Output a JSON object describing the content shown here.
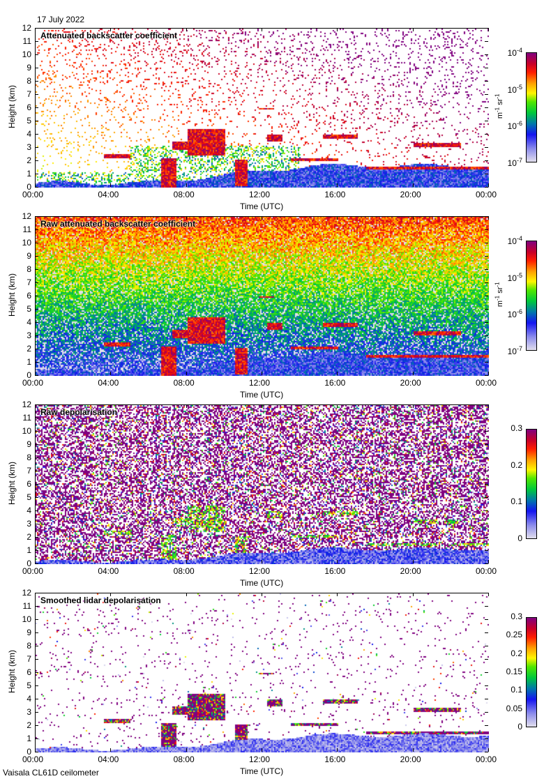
{
  "header": {
    "date": "17 July 2022"
  },
  "footer": {
    "instrument": "Vaisala CL61D ceilometer"
  },
  "chart_data": [
    {
      "type": "heatmap",
      "title": "Attenuated backscatter coefficient",
      "xlabel": "Time (UTC)",
      "ylabel": "Height (km)",
      "xticks": [
        "00:00",
        "04:00",
        "08:00",
        "12:00",
        "16:00",
        "20:00",
        "00:00"
      ],
      "yticks": [
        "0",
        "1",
        "2",
        "3",
        "4",
        "5",
        "6",
        "7",
        "8",
        "9",
        "10",
        "11",
        "12"
      ],
      "ylim": [
        0,
        12
      ],
      "colorbar": {
        "scale": "log",
        "range": [
          1e-07,
          0.0001
        ],
        "unit_base": "m",
        "unit_exp1": "-1",
        "unit_mid": " sr",
        "unit_exp2": "-1",
        "ticks": [
          {
            "base": "10",
            "exp": "-4"
          },
          {
            "base": "10",
            "exp": "-5"
          },
          {
            "base": "10",
            "exp": "-6"
          },
          {
            "base": "10",
            "exp": "-7"
          }
        ]
      }
    },
    {
      "type": "heatmap",
      "title": "Raw attenuated backscatter coefficient",
      "xlabel": "Time (UTC)",
      "ylabel": "Height (km)",
      "xticks": [
        "00:00",
        "04:00",
        "08:00",
        "12:00",
        "16:00",
        "20:00",
        "00:00"
      ],
      "yticks": [
        "0",
        "1",
        "2",
        "3",
        "4",
        "5",
        "6",
        "7",
        "8",
        "9",
        "10",
        "11",
        "12"
      ],
      "ylim": [
        0,
        12
      ],
      "colorbar": {
        "scale": "log",
        "range": [
          1e-07,
          0.0001
        ],
        "unit_base": "m",
        "unit_exp1": "-1",
        "unit_mid": " sr",
        "unit_exp2": "-1",
        "ticks": [
          {
            "base": "10",
            "exp": "-4"
          },
          {
            "base": "10",
            "exp": "-5"
          },
          {
            "base": "10",
            "exp": "-6"
          },
          {
            "base": "10",
            "exp": "-7"
          }
        ]
      }
    },
    {
      "type": "heatmap",
      "title": "Raw depolarisation",
      "xlabel": "Time (UTC)",
      "ylabel": "Height (km)",
      "xticks": [
        "00:00",
        "04:00",
        "08:00",
        "12:00",
        "16:00",
        "20:00",
        "00:00"
      ],
      "yticks": [
        "0",
        "1",
        "2",
        "3",
        "4",
        "5",
        "6",
        "7",
        "8",
        "9",
        "10",
        "11",
        "12"
      ],
      "ylim": [
        0,
        12
      ],
      "colorbar": {
        "scale": "linear",
        "range": [
          0,
          0.3
        ],
        "ticks": [
          "0.3",
          "0.2",
          "0.1",
          "0"
        ]
      }
    },
    {
      "type": "heatmap",
      "title": "Smoothed lidar depolarisation",
      "xlabel": "Time (UTC)",
      "ylabel": "Height (km)",
      "xticks": [
        "00:00",
        "04:00",
        "08:00",
        "12:00",
        "16:00",
        "20:00",
        "00:00"
      ],
      "yticks": [
        "0",
        "1",
        "2",
        "3",
        "4",
        "5",
        "6",
        "7",
        "8",
        "9",
        "10",
        "11",
        "12"
      ],
      "ylim": [
        0,
        12
      ],
      "colorbar": {
        "scale": "linear",
        "range": [
          0,
          0.3
        ],
        "ticks": [
          "0.3",
          "0.25",
          "0.2",
          "0.15",
          "0.1",
          "0.05",
          "0"
        ]
      }
    }
  ]
}
